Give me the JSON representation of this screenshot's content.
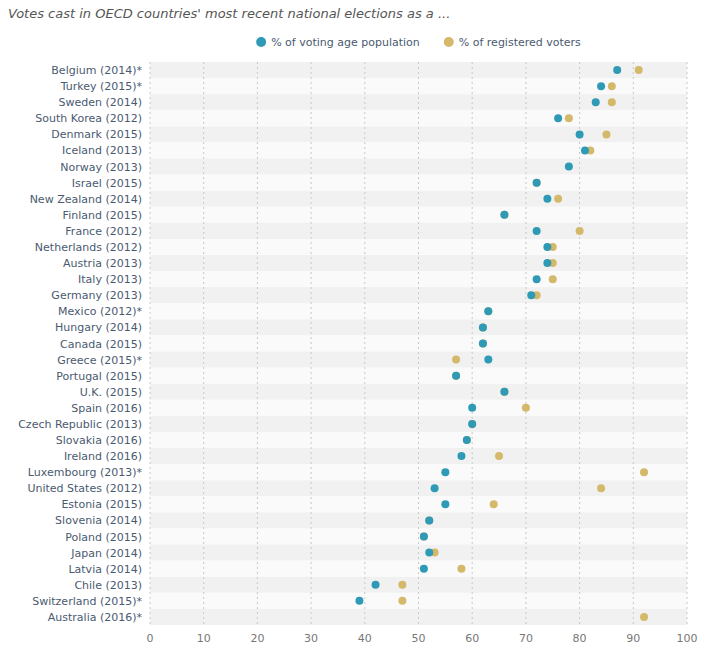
{
  "chart_data": {
    "type": "dot",
    "orientation": "horizontal",
    "title": "Votes cast in OECD countries' most recent national elections as a ...",
    "categories": [
      "Belgium (2014)*",
      "Turkey (2015)*",
      "Sweden (2014)",
      "South Korea (2012)",
      "Denmark (2015)",
      "Iceland (2013)",
      "Norway (2013)",
      "Israel (2015)",
      "New Zealand (2014)",
      "Finland (2015)",
      "France (2012)",
      "Netherlands (2012)",
      "Austria (2013)",
      "Italy (2013)",
      "Germany (2013)",
      "Mexico (2012)*",
      "Hungary (2014)",
      "Canada (2015)",
      "Greece (2015)*",
      "Portugal (2015)",
      "U.K. (2015)",
      "Spain (2016)",
      "Czech Republic (2013)",
      "Slovakia (2016)",
      "Ireland (2016)",
      "Luxembourg (2013)*",
      "United States (2012)",
      "Estonia (2015)",
      "Slovenia (2014)",
      "Poland (2015)",
      "Japan (2014)",
      "Latvia (2014)",
      "Chile (2013)",
      "Switzerland (2015)*",
      "Australia (2016)*"
    ],
    "series": [
      {
        "name": "% of voting age population",
        "color": "#2e9ab5",
        "marker": "circle",
        "values": [
          87,
          84,
          83,
          76,
          80,
          81,
          78,
          72,
          74,
          66,
          72,
          74,
          74,
          72,
          71,
          63,
          62,
          62,
          63,
          57,
          66,
          60,
          60,
          59,
          58,
          55,
          53,
          55,
          52,
          51,
          52,
          51,
          42,
          39,
          null
        ]
      },
      {
        "name": "% of registered voters",
        "color": "#d4b96a",
        "marker": "circle",
        "values": [
          91,
          86,
          86,
          78,
          85,
          82,
          null,
          72,
          76,
          66,
          80,
          75,
          75,
          75,
          72,
          63,
          62,
          62,
          57,
          57,
          66,
          70,
          60,
          59,
          65,
          92,
          84,
          64,
          52,
          51,
          53,
          58,
          47,
          47,
          92
        ]
      }
    ],
    "xlim": [
      0,
      100
    ],
    "xticks": [
      0,
      10,
      20,
      30,
      40,
      50,
      60,
      70,
      80,
      90,
      100
    ],
    "grid": true,
    "legend": "top"
  }
}
